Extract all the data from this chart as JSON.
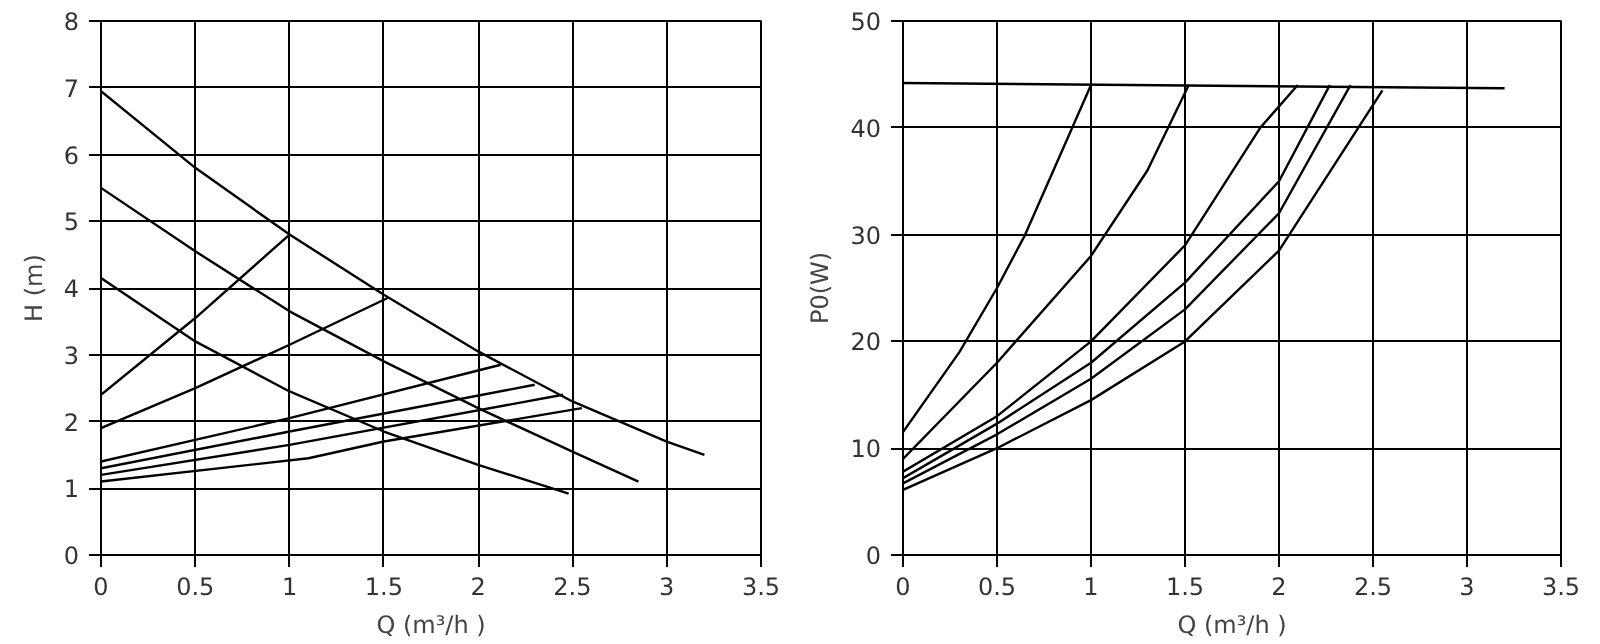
{
  "chart_data": [
    {
      "type": "line",
      "xlabel": "Q (m³/h )",
      "ylabel": "H (m)",
      "xlim": [
        0,
        3.5
      ],
      "ylim": [
        0,
        8
      ],
      "xticks": [
        0,
        0.5,
        1,
        1.5,
        2,
        2.5,
        3,
        3.5
      ],
      "yticks": [
        0,
        1,
        2,
        3,
        4,
        5,
        6,
        7,
        8
      ],
      "grid": true,
      "series": [
        {
          "color": "#000000",
          "x": [
            0,
            0.5,
            1,
            1.5,
            2,
            2.5,
            3,
            3.2
          ],
          "values": [
            6.95,
            5.8,
            4.8,
            3.9,
            3.05,
            2.3,
            1.7,
            1.5
          ]
        },
        {
          "color": "#000000",
          "x": [
            0,
            0.5,
            1,
            1.5,
            2,
            2.5,
            2.85
          ],
          "values": [
            5.5,
            4.55,
            3.65,
            2.9,
            2.2,
            1.55,
            1.1
          ]
        },
        {
          "color": "#000000",
          "x": [
            0,
            0.5,
            1,
            1.5,
            2,
            2.48
          ],
          "values": [
            4.15,
            3.2,
            2.45,
            1.85,
            1.35,
            0.92
          ]
        },
        {
          "color": "#000000",
          "x": [
            0,
            0.5,
            1
          ],
          "values": [
            2.4,
            3.55,
            4.8
          ]
        },
        {
          "color": "#000000",
          "x": [
            0,
            0.5,
            1,
            1.52
          ],
          "values": [
            1.9,
            2.5,
            3.15,
            3.85
          ]
        },
        {
          "color": "#000000",
          "x": [
            0,
            1,
            2.12
          ],
          "values": [
            1.4,
            2.05,
            2.85
          ]
        },
        {
          "color": "#000000",
          "x": [
            0,
            1,
            2.3
          ],
          "values": [
            1.3,
            1.85,
            2.55
          ]
        },
        {
          "color": "#000000",
          "x": [
            0,
            1,
            2.45
          ],
          "values": [
            1.2,
            1.65,
            2.4
          ]
        },
        {
          "color": "#000000",
          "x": [
            0,
            1.1,
            1.5,
            2.55
          ],
          "values": [
            1.1,
            1.45,
            1.7,
            2.2
          ]
        }
      ]
    },
    {
      "type": "line",
      "xlabel": "Q (m³/h )",
      "ylabel": "P0(W)",
      "xlim": [
        0,
        3.5
      ],
      "ylim": [
        0,
        50
      ],
      "xticks": [
        0,
        0.5,
        1,
        1.5,
        2,
        2.5,
        3,
        3.5
      ],
      "yticks": [
        0,
        10,
        20,
        30,
        40,
        50
      ],
      "grid": true,
      "series": [
        {
          "color": "#000000",
          "x": [
            0,
            3.2
          ],
          "values": [
            44.2,
            43.7
          ]
        },
        {
          "color": "#000000",
          "x": [
            0,
            0.3,
            0.5,
            0.65,
            0.9,
            1
          ],
          "values": [
            11.5,
            19,
            25,
            30,
            40,
            44
          ]
        },
        {
          "color": "#000000",
          "x": [
            0,
            0.5,
            1,
            1.3,
            1.52
          ],
          "values": [
            9,
            18,
            28,
            36,
            44
          ]
        },
        {
          "color": "#000000",
          "x": [
            0,
            0.5,
            1,
            1.5,
            1.9,
            2.1
          ],
          "values": [
            7.8,
            13,
            20,
            29,
            40,
            44
          ]
        },
        {
          "color": "#000000",
          "x": [
            0,
            0.5,
            1,
            1.5,
            2,
            2.27
          ],
          "values": [
            7.2,
            12.3,
            18,
            25.5,
            35,
            44
          ]
        },
        {
          "color": "#000000",
          "x": [
            0,
            0.5,
            1,
            1.5,
            2,
            2.38
          ],
          "values": [
            6.7,
            11.3,
            16.5,
            23,
            32,
            44
          ]
        },
        {
          "color": "#000000",
          "x": [
            0,
            0.5,
            1,
            1.5,
            2,
            2.55
          ],
          "values": [
            6.1,
            10,
            14.5,
            20,
            28.5,
            43.5
          ]
        }
      ]
    }
  ]
}
